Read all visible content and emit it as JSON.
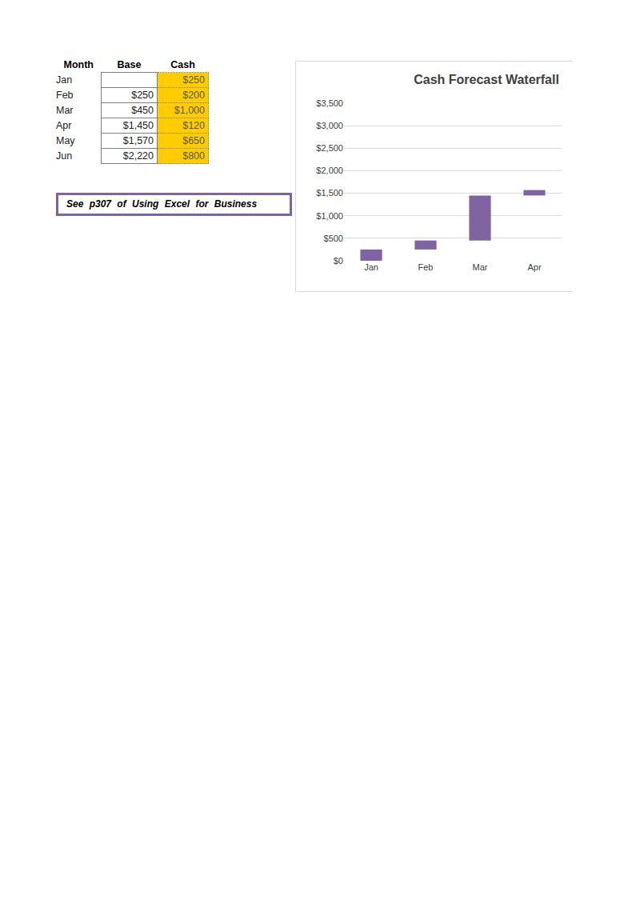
{
  "table": {
    "header": [
      "Month",
      "Base",
      "Cash"
    ],
    "rows": [
      [
        "Jan",
        null,
        "$250"
      ],
      [
        "Feb",
        "$250",
        "$200"
      ],
      [
        "Mar",
        "$450",
        "$1,000"
      ],
      [
        "Apr",
        "$1,450",
        "$120"
      ],
      [
        "May",
        "$1,570",
        "$650"
      ],
      [
        "Jun",
        "$2,220",
        "$800"
      ]
    ]
  },
  "note": "See p307 of Using Excel for Business",
  "chart_data": {
    "type": "bar",
    "title": "Cash Forecast Waterfall",
    "categories": [
      "Jan",
      "Feb",
      "Mar",
      "Apr"
    ],
    "base": [
      0,
      250,
      450,
      1450
    ],
    "values": [
      250,
      200,
      1000,
      120
    ],
    "color": "#8064a2",
    "ylim": [
      0,
      3500
    ],
    "yticks": [
      {
        "value": 0,
        "label": "$0"
      },
      {
        "value": 500,
        "label": "$500"
      },
      {
        "value": 1000,
        "label": "$1,000"
      },
      {
        "value": 1500,
        "label": "$1,500"
      },
      {
        "value": 2000,
        "label": "$2,000"
      },
      {
        "value": 2500,
        "label": "$2,500"
      },
      {
        "value": 3000,
        "label": "$3,000"
      },
      {
        "value": 3500,
        "label": "$3,500"
      }
    ],
    "grid": true
  }
}
